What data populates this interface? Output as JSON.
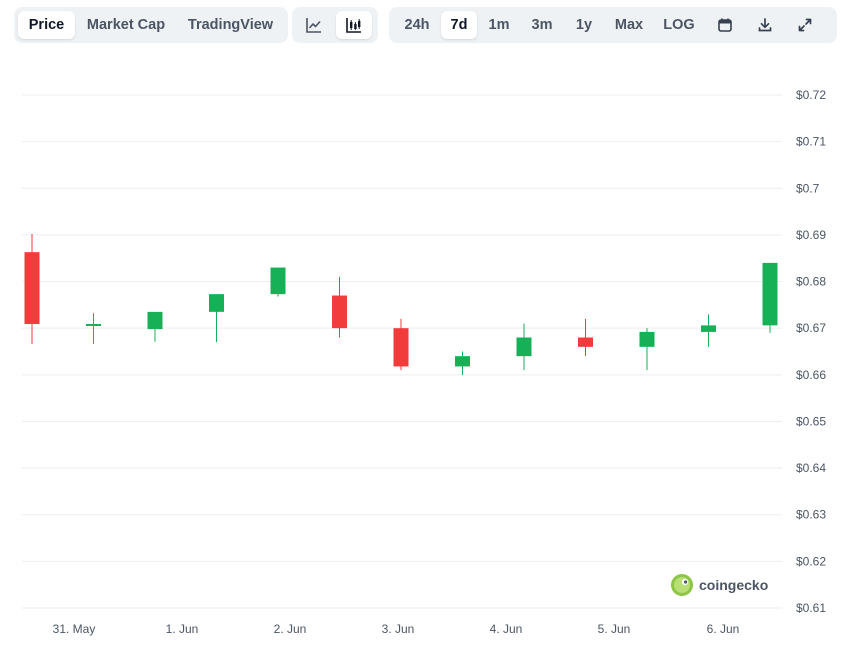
{
  "toolbar": {
    "metric_tabs": [
      {
        "label": "Price",
        "active": true
      },
      {
        "label": "Market Cap",
        "active": false
      },
      {
        "label": "TradingView",
        "active": false
      }
    ],
    "chart_type_icons": [
      {
        "icon": "line-chart-icon",
        "active": false
      },
      {
        "icon": "candlestick-chart-icon",
        "active": true
      }
    ],
    "ranges": [
      {
        "label": "24h",
        "active": false
      },
      {
        "label": "7d",
        "active": true
      },
      {
        "label": "1m",
        "active": false
      },
      {
        "label": "3m",
        "active": false
      },
      {
        "label": "1y",
        "active": false
      },
      {
        "label": "Max",
        "active": false
      },
      {
        "label": "LOG",
        "active": false
      }
    ],
    "action_icons": [
      "calendar-icon",
      "download-icon",
      "expand-icon"
    ]
  },
  "watermark": "coingecko",
  "colors": {
    "up": "#16b157",
    "down": "#f23b3b",
    "grid": "#eceef1",
    "accent_bg": "#eff2f5"
  },
  "chart_data": {
    "type": "candlestick",
    "y_ticks": [
      "$0.72",
      "$0.71",
      "$0.7",
      "$0.69",
      "$0.68",
      "$0.67",
      "$0.66",
      "$0.65",
      "$0.64",
      "$0.63",
      "$0.62",
      "$0.61"
    ],
    "y_range": [
      0.61,
      0.72
    ],
    "x_ticks": [
      "31. May",
      "1. Jun",
      "2. Jun",
      "3. Jun",
      "4. Jun",
      "5. Jun",
      "6. Jun"
    ],
    "grid": true,
    "candles": [
      {
        "o": 0.6863,
        "h": 0.6902,
        "l": 0.6666,
        "c": 0.6709
      },
      {
        "o": 0.6709,
        "h": 0.6732,
        "l": 0.6666,
        "c": 0.6709
      },
      {
        "o": 0.6698,
        "h": 0.6732,
        "l": 0.6671,
        "c": 0.6735
      },
      {
        "o": 0.6735,
        "h": 0.6773,
        "l": 0.667,
        "c": 0.6773
      },
      {
        "o": 0.6773,
        "h": 0.683,
        "l": 0.6768,
        "c": 0.683
      },
      {
        "o": 0.677,
        "h": 0.681,
        "l": 0.668,
        "c": 0.67
      },
      {
        "o": 0.67,
        "h": 0.672,
        "l": 0.661,
        "c": 0.6618
      },
      {
        "o": 0.6618,
        "h": 0.665,
        "l": 0.66,
        "c": 0.664
      },
      {
        "o": 0.664,
        "h": 0.671,
        "l": 0.661,
        "c": 0.668
      },
      {
        "o": 0.668,
        "h": 0.672,
        "l": 0.664,
        "c": 0.666
      },
      {
        "o": 0.666,
        "h": 0.67,
        "l": 0.661,
        "c": 0.6692
      },
      {
        "o": 0.6692,
        "h": 0.673,
        "l": 0.666,
        "c": 0.6706
      },
      {
        "o": 0.6706,
        "h": 0.684,
        "l": 0.669,
        "c": 0.684
      }
    ]
  }
}
